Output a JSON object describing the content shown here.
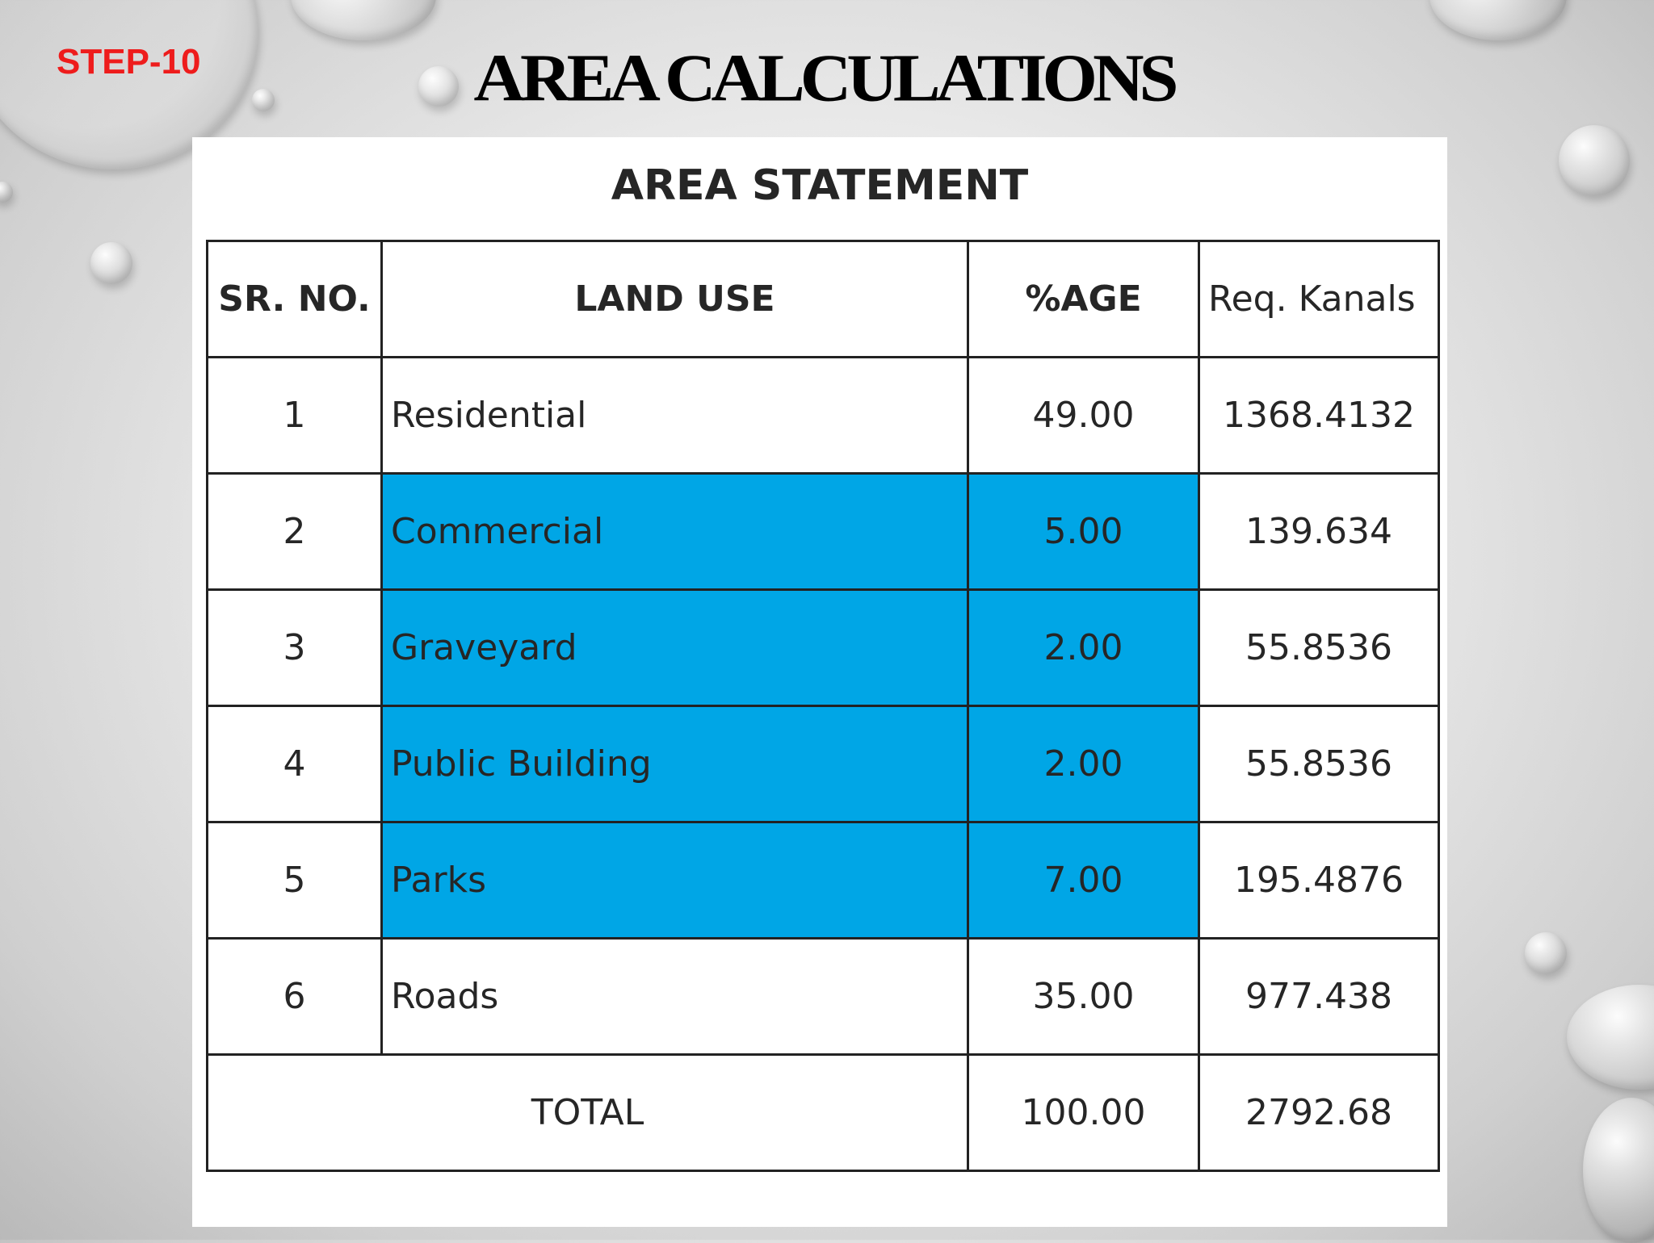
{
  "slide": {
    "step": "STEP-10",
    "title": "AREA CALCULATIONS"
  },
  "table": {
    "title": "AREA STATEMENT",
    "headers": {
      "sr_no": "SR. NO.",
      "land_use": "LAND USE",
      "percentage": "%AGE",
      "req_kanals": "Req. Kanals"
    },
    "rows": [
      {
        "sr": "1",
        "land_use": "Residential",
        "percentage": "49.00",
        "kanals": "1368.4132",
        "highlighted": false
      },
      {
        "sr": "2",
        "land_use": "Commercial",
        "percentage": "5.00",
        "kanals": "139.634",
        "highlighted": true
      },
      {
        "sr": "3",
        "land_use": "Graveyard",
        "percentage": "2.00",
        "kanals": "55.8536",
        "highlighted": true
      },
      {
        "sr": "4",
        "land_use": "Public Building",
        "percentage": "2.00",
        "kanals": "55.8536",
        "highlighted": true
      },
      {
        "sr": "5",
        "land_use": "Parks",
        "percentage": "7.00",
        "kanals": "195.4876",
        "highlighted": true
      },
      {
        "sr": "6",
        "land_use": "Roads",
        "percentage": "35.00",
        "kanals": "977.438",
        "highlighted": false
      }
    ],
    "total": {
      "label": "TOTAL",
      "percentage": "100.00",
      "kanals": "2792.68"
    }
  },
  "colors": {
    "step_label": "#ee1c1c",
    "highlight": "#00a6e6",
    "title": "#000000"
  }
}
